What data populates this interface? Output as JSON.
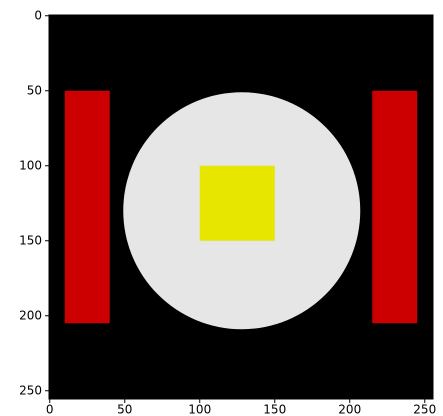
{
  "chart_data": {
    "type": "image",
    "background": "#000000",
    "xlim": [
      -0.5,
      255.5
    ],
    "ylim": [
      255.5,
      -0.5
    ],
    "xticks": [
      0,
      50,
      100,
      150,
      200,
      250
    ],
    "yticks": [
      0,
      50,
      100,
      150,
      200,
      250
    ],
    "rects": [
      {
        "x": [
          10,
          40
        ],
        "y": [
          50,
          205
        ],
        "color": "#cc0000"
      },
      {
        "x": [
          215,
          245
        ],
        "y": [
          50,
          205
        ],
        "color": "#cc0000"
      },
      {
        "x": [
          100,
          150
        ],
        "y": [
          100,
          150
        ],
        "color": "#e6e600"
      }
    ],
    "circles": [
      {
        "cx": 128,
        "cy": 130,
        "r": 79,
        "color": "#e6e6e6"
      }
    ]
  }
}
